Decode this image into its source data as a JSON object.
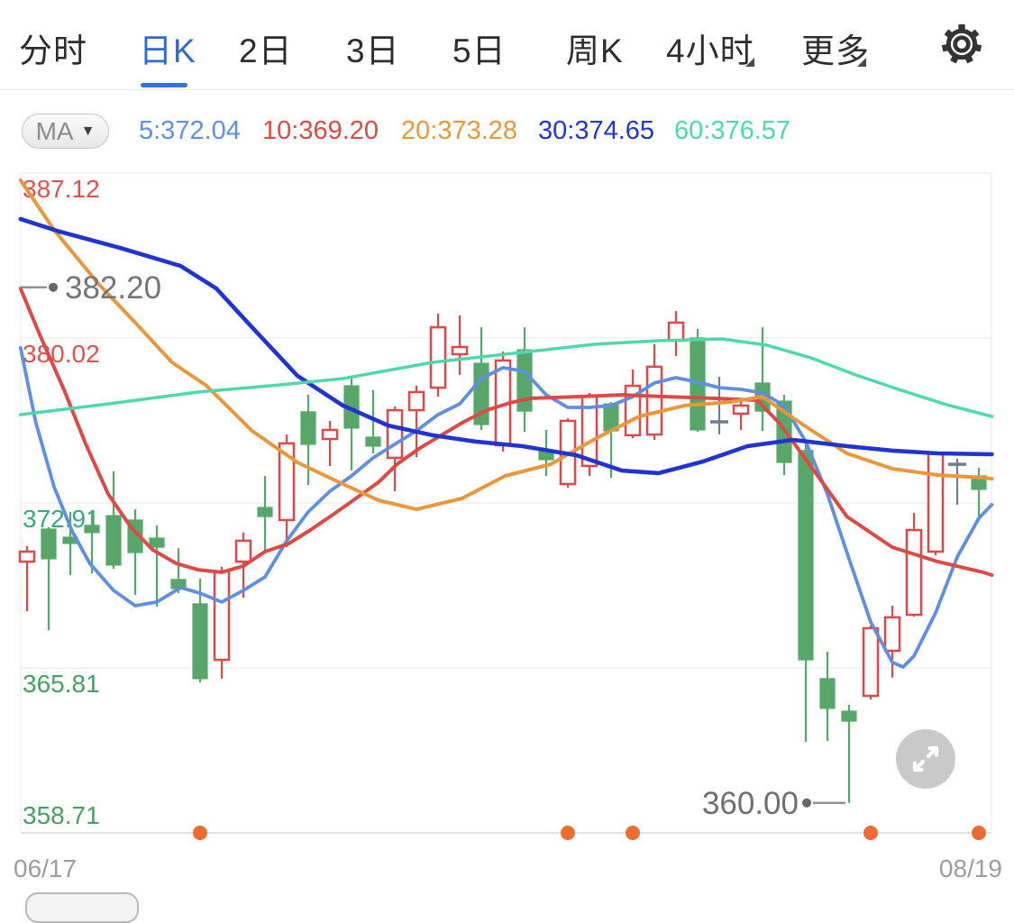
{
  "nav": {
    "tabs": [
      {
        "label": "分时",
        "active": false,
        "caret": false
      },
      {
        "label": "日K",
        "active": true,
        "caret": false
      },
      {
        "label": "2日",
        "active": false,
        "caret": false
      },
      {
        "label": "3日",
        "active": false,
        "caret": false
      },
      {
        "label": "5日",
        "active": false,
        "caret": false
      },
      {
        "label": "周K",
        "active": false,
        "caret": false
      },
      {
        "label": "4小时",
        "active": false,
        "caret": true
      },
      {
        "label": "更多",
        "active": false,
        "caret": true
      }
    ],
    "accent_color": "#2e68d9"
  },
  "toolbar": {
    "ma_button": "MA",
    "ma_caret": "▼",
    "legend": [
      {
        "label": "5:372.04",
        "color": "#5e8fe0"
      },
      {
        "label": "10:369.20",
        "color": "#dc4a45"
      },
      {
        "label": "20:373.28",
        "color": "#e8973b"
      },
      {
        "label": "30:374.65",
        "color": "#2135ce"
      },
      {
        "label": "60:376.57",
        "color": "#4ed9ac"
      }
    ]
  },
  "chart_data": {
    "type": "candlestick",
    "x_axis": {
      "start_label": "06/17",
      "end_label": "08/19"
    },
    "ylim": [
      358.71,
      387.12
    ],
    "y_ticks": [
      {
        "label": "387.12",
        "value": 387.12,
        "color": "#d9534f"
      },
      {
        "label": "380.02",
        "value": 380.02,
        "color": "#d9534f"
      },
      {
        "label": "372.91",
        "value": 372.91,
        "color": "#3aa87b"
      },
      {
        "label": "365.81",
        "value": 365.81,
        "color": "#44a25e"
      },
      {
        "label": "358.71",
        "value": 358.71,
        "color": "#44a25e"
      }
    ],
    "colors": {
      "up": "#dd4848",
      "down": "#58a76a",
      "flat": "#6f7d90",
      "event_dot": "#ed6c31",
      "grid": "#f0f0f0",
      "axis": "#e2e2e2"
    },
    "candles": [
      {
        "d": "up",
        "o": 370.39,
        "c": 370.82,
        "h": 371.05,
        "l": 368.26
      },
      {
        "d": "down",
        "o": 371.79,
        "c": 370.51,
        "h": 371.87,
        "l": 367.44
      },
      {
        "d": "down",
        "o": 371.44,
        "c": 371.17,
        "h": 372.53,
        "l": 369.81
      },
      {
        "d": "down",
        "o": 371.95,
        "c": 371.64,
        "h": 372.6,
        "l": 369.89
      },
      {
        "d": "down",
        "o": 372.37,
        "c": 370.24,
        "h": 374.28,
        "l": 370.08
      },
      {
        "d": "down",
        "o": 372.18,
        "c": 370.78,
        "h": 372.64,
        "l": 368.96
      },
      {
        "d": "down",
        "o": 371.4,
        "c": 371.01,
        "h": 371.95,
        "l": 368.45
      },
      {
        "d": "down",
        "o": 369.62,
        "c": 369.23,
        "h": 370.97,
        "l": 369.03
      },
      {
        "d": "down",
        "o": 368.57,
        "c": 365.35,
        "h": 369.66,
        "l": 365.19
      },
      {
        "d": "up",
        "o": 366.16,
        "c": 369.97,
        "h": 370.16,
        "l": 365.35
      },
      {
        "d": "up",
        "o": 370.39,
        "c": 371.29,
        "h": 371.64,
        "l": 368.84
      },
      {
        "d": "down",
        "o": 372.72,
        "c": 372.33,
        "h": 374.08,
        "l": 370.74
      },
      {
        "d": "up",
        "o": 372.18,
        "c": 375.48,
        "h": 375.87,
        "l": 371.01
      },
      {
        "d": "down",
        "o": 376.84,
        "c": 375.44,
        "h": 377.57,
        "l": 373.69
      },
      {
        "d": "up",
        "o": 375.67,
        "c": 376.06,
        "h": 376.45,
        "l": 374.51
      },
      {
        "d": "down",
        "o": 377.96,
        "c": 376.14,
        "h": 378.39,
        "l": 374.31
      },
      {
        "d": "down",
        "o": 375.75,
        "c": 375.36,
        "h": 377.77,
        "l": 375.05
      },
      {
        "d": "up",
        "o": 374.86,
        "c": 376.91,
        "h": 377.07,
        "l": 373.42
      },
      {
        "d": "up",
        "o": 376.91,
        "c": 377.69,
        "h": 377.96,
        "l": 374.89
      },
      {
        "d": "up",
        "o": 377.88,
        "c": 380.48,
        "h": 381.07,
        "l": 377.49
      },
      {
        "d": "up",
        "o": 379.32,
        "c": 379.63,
        "h": 380.99,
        "l": 378.43
      },
      {
        "d": "down",
        "o": 378.93,
        "c": 376.29,
        "h": 380.48,
        "l": 376.06
      },
      {
        "d": "up",
        "o": 375.4,
        "c": 379.05,
        "h": 379.44,
        "l": 375.13
      },
      {
        "d": "down",
        "o": 379.51,
        "c": 376.87,
        "h": 380.48,
        "l": 375.98
      },
      {
        "d": "down",
        "o": 375.2,
        "c": 374.78,
        "h": 376.06,
        "l": 374.08
      },
      {
        "d": "up",
        "o": 373.73,
        "c": 376.45,
        "h": 376.56,
        "l": 373.58
      },
      {
        "d": "up",
        "o": 374.51,
        "c": 377.49,
        "h": 377.65,
        "l": 374.08
      },
      {
        "d": "down",
        "o": 377.18,
        "c": 376.02,
        "h": 377.26,
        "l": 374.0
      },
      {
        "d": "up",
        "o": 375.83,
        "c": 377.96,
        "h": 378.66,
        "l": 375.71
      },
      {
        "d": "up",
        "o": 375.86,
        "c": 378.78,
        "h": 379.75,
        "l": 375.63
      },
      {
        "d": "up",
        "o": 379.9,
        "c": 380.68,
        "h": 381.18,
        "l": 379.24
      },
      {
        "d": "down",
        "o": 380.02,
        "c": 376.06,
        "h": 380.41,
        "l": 375.98
      },
      {
        "d": "flat",
        "o": 376.41,
        "c": 376.41,
        "h": 378.35,
        "l": 375.87
      },
      {
        "d": "up",
        "o": 376.76,
        "c": 377.11,
        "h": 377.38,
        "l": 376.06
      },
      {
        "d": "down",
        "o": 378.08,
        "c": 376.87,
        "h": 380.48,
        "l": 376.02
      },
      {
        "d": "down",
        "o": 377.3,
        "c": 374.66,
        "h": 377.57,
        "l": 374.12
      },
      {
        "d": "down",
        "o": 375.17,
        "c": 366.16,
        "h": 375.48,
        "l": 362.63
      },
      {
        "d": "down",
        "o": 365.35,
        "c": 364.07,
        "h": 366.51,
        "l": 362.67
      },
      {
        "d": "down",
        "o": 363.95,
        "c": 363.52,
        "h": 364.22,
        "l": 360.0
      },
      {
        "d": "up",
        "o": 364.61,
        "c": 367.52,
        "h": 367.64,
        "l": 364.45
      },
      {
        "d": "up",
        "o": 366.55,
        "c": 367.99,
        "h": 368.49,
        "l": 365.39
      },
      {
        "d": "up",
        "o": 368.1,
        "c": 371.75,
        "h": 372.49,
        "l": 368.02
      },
      {
        "d": "up",
        "o": 370.82,
        "c": 375.05,
        "h": 375.13,
        "l": 370.66
      },
      {
        "d": "flat",
        "o": 374.58,
        "c": 374.58,
        "h": 374.82,
        "l": 372.84
      },
      {
        "d": "down",
        "o": 374.08,
        "c": 373.5,
        "h": 374.43,
        "l": 372.14
      }
    ],
    "ma_series": [
      {
        "name": "MA5",
        "color": "#5e8fe0",
        "width": 3.8,
        "points": [
          [
            -0.3,
            379.6
          ],
          [
            0.4,
            376.4
          ],
          [
            1.25,
            373.61
          ],
          [
            2.1,
            371.67
          ],
          [
            2.9,
            370.31
          ],
          [
            4,
            369.15
          ],
          [
            5,
            368.49
          ],
          [
            6,
            368.65
          ],
          [
            7.1,
            369.27
          ],
          [
            8,
            369.03
          ],
          [
            9,
            368.65
          ],
          [
            10,
            369.15
          ],
          [
            11,
            369.73
          ],
          [
            12,
            371.28
          ],
          [
            13,
            372.53
          ],
          [
            14,
            373.42
          ],
          [
            15,
            374.08
          ],
          [
            16,
            374.86
          ],
          [
            17,
            375.44
          ],
          [
            18,
            376.02
          ],
          [
            19,
            376.72
          ],
          [
            20,
            377.18
          ],
          [
            21,
            378.27
          ],
          [
            22,
            378.74
          ],
          [
            23,
            378.58
          ],
          [
            24,
            377.57
          ],
          [
            25,
            377.03
          ],
          [
            26,
            377.03
          ],
          [
            27,
            377.11
          ],
          [
            28,
            377.49
          ],
          [
            29,
            378.08
          ],
          [
            30,
            378.31
          ],
          [
            31,
            378.12
          ],
          [
            32,
            377.88
          ],
          [
            33,
            377.81
          ],
          [
            34,
            377.65
          ],
          [
            35,
            377.11
          ],
          [
            36,
            375.55
          ],
          [
            37,
            373.3
          ],
          [
            38,
            370.51
          ],
          [
            39,
            367.79
          ],
          [
            40,
            366.05
          ],
          [
            40.5,
            365.85
          ],
          [
            41,
            366.32
          ],
          [
            42,
            368.18
          ],
          [
            43,
            370.59
          ],
          [
            44,
            372.26
          ],
          [
            44.6,
            372.84
          ]
        ]
      },
      {
        "name": "MA10",
        "color": "#dc4a45",
        "width": 4,
        "points": [
          [
            -0.3,
            382.15
          ],
          [
            0.6,
            380.13
          ],
          [
            1.7,
            377.81
          ],
          [
            2.7,
            375.48
          ],
          [
            3.75,
            373.3
          ],
          [
            4.8,
            371.87
          ],
          [
            5.8,
            370.9
          ],
          [
            6.9,
            370.31
          ],
          [
            7.9,
            370.04
          ],
          [
            9,
            369.93
          ],
          [
            10,
            370.2
          ],
          [
            11,
            370.82
          ],
          [
            12.1,
            371.17
          ],
          [
            13.1,
            371.75
          ],
          [
            14.2,
            372.45
          ],
          [
            15.2,
            373.11
          ],
          [
            16.25,
            373.81
          ],
          [
            17.1,
            374.58
          ],
          [
            18.1,
            375.24
          ],
          [
            19.2,
            375.86
          ],
          [
            20.2,
            376.41
          ],
          [
            21.25,
            376.91
          ],
          [
            22.3,
            377.22
          ],
          [
            23.3,
            377.42
          ],
          [
            25.4,
            377.49
          ],
          [
            27.5,
            377.57
          ],
          [
            29.6,
            377.49
          ],
          [
            31.7,
            377.42
          ],
          [
            33.75,
            377.34
          ],
          [
            34.8,
            376.33
          ],
          [
            35.8,
            375.05
          ],
          [
            37.9,
            372.33
          ],
          [
            40,
            371.01
          ],
          [
            42.1,
            370.39
          ],
          [
            44.2,
            369.93
          ],
          [
            44.6,
            369.81
          ]
        ]
      },
      {
        "name": "MA20",
        "color": "#e8973b",
        "width": 4,
        "points": [
          [
            -0.3,
            386.81
          ],
          [
            1.25,
            384.67
          ],
          [
            3.3,
            382.35
          ],
          [
            5,
            380.68
          ],
          [
            6.7,
            378.97
          ],
          [
            8.3,
            377.96
          ],
          [
            10.4,
            376.02
          ],
          [
            12.5,
            374.66
          ],
          [
            14.6,
            373.73
          ],
          [
            16.25,
            373.03
          ],
          [
            18,
            372.64
          ],
          [
            20.1,
            373.11
          ],
          [
            22.1,
            374.08
          ],
          [
            24.2,
            374.58
          ],
          [
            26.25,
            375.67
          ],
          [
            28.3,
            376.64
          ],
          [
            30.4,
            377.11
          ],
          [
            32.5,
            377.26
          ],
          [
            34,
            377.49
          ],
          [
            35.8,
            376.33
          ],
          [
            37.9,
            375.05
          ],
          [
            40,
            374.39
          ],
          [
            42.1,
            374.12
          ],
          [
            44.2,
            374.0
          ],
          [
            44.6,
            373.96
          ]
        ]
      },
      {
        "name": "MA30",
        "color": "#2135ce",
        "width": 4.6,
        "points": [
          [
            -0.3,
            385.14
          ],
          [
            1.5,
            384.6
          ],
          [
            4.3,
            383.9
          ],
          [
            7.1,
            383.12
          ],
          [
            8.75,
            382.15
          ],
          [
            10.4,
            380.48
          ],
          [
            12.5,
            378.39
          ],
          [
            14.6,
            377.11
          ],
          [
            16.7,
            376.25
          ],
          [
            18.75,
            375.83
          ],
          [
            20.8,
            375.55
          ],
          [
            22.9,
            375.36
          ],
          [
            25.4,
            374.97
          ],
          [
            27.5,
            374.31
          ],
          [
            29.2,
            374.2
          ],
          [
            31.25,
            374.7
          ],
          [
            33.3,
            375.36
          ],
          [
            35.4,
            375.63
          ],
          [
            37.9,
            375.36
          ],
          [
            40,
            375.17
          ],
          [
            42.1,
            375.05
          ],
          [
            44.6,
            375.01
          ]
        ]
      },
      {
        "name": "MA60",
        "color": "#4ed9ac",
        "width": 3.5,
        "points": [
          [
            -0.3,
            376.72
          ],
          [
            3.75,
            377.18
          ],
          [
            7.9,
            377.69
          ],
          [
            11.7,
            378.0
          ],
          [
            14.6,
            378.27
          ],
          [
            18.75,
            378.97
          ],
          [
            22.1,
            379.32
          ],
          [
            26.25,
            379.75
          ],
          [
            29.2,
            379.9
          ],
          [
            32.1,
            379.98
          ],
          [
            34.2,
            379.71
          ],
          [
            36.25,
            379.16
          ],
          [
            38.3,
            378.43
          ],
          [
            40.4,
            377.77
          ],
          [
            42.5,
            377.15
          ],
          [
            44.6,
            376.64
          ]
        ]
      }
    ],
    "annotations": [
      {
        "label": "382.20",
        "price": 382.2,
        "type": "left-edge"
      },
      {
        "label": "360.00",
        "price": 360.0,
        "type": "point",
        "index": 38
      }
    ],
    "event_dots": {
      "indices": [
        8,
        25,
        28,
        39,
        44
      ]
    }
  }
}
